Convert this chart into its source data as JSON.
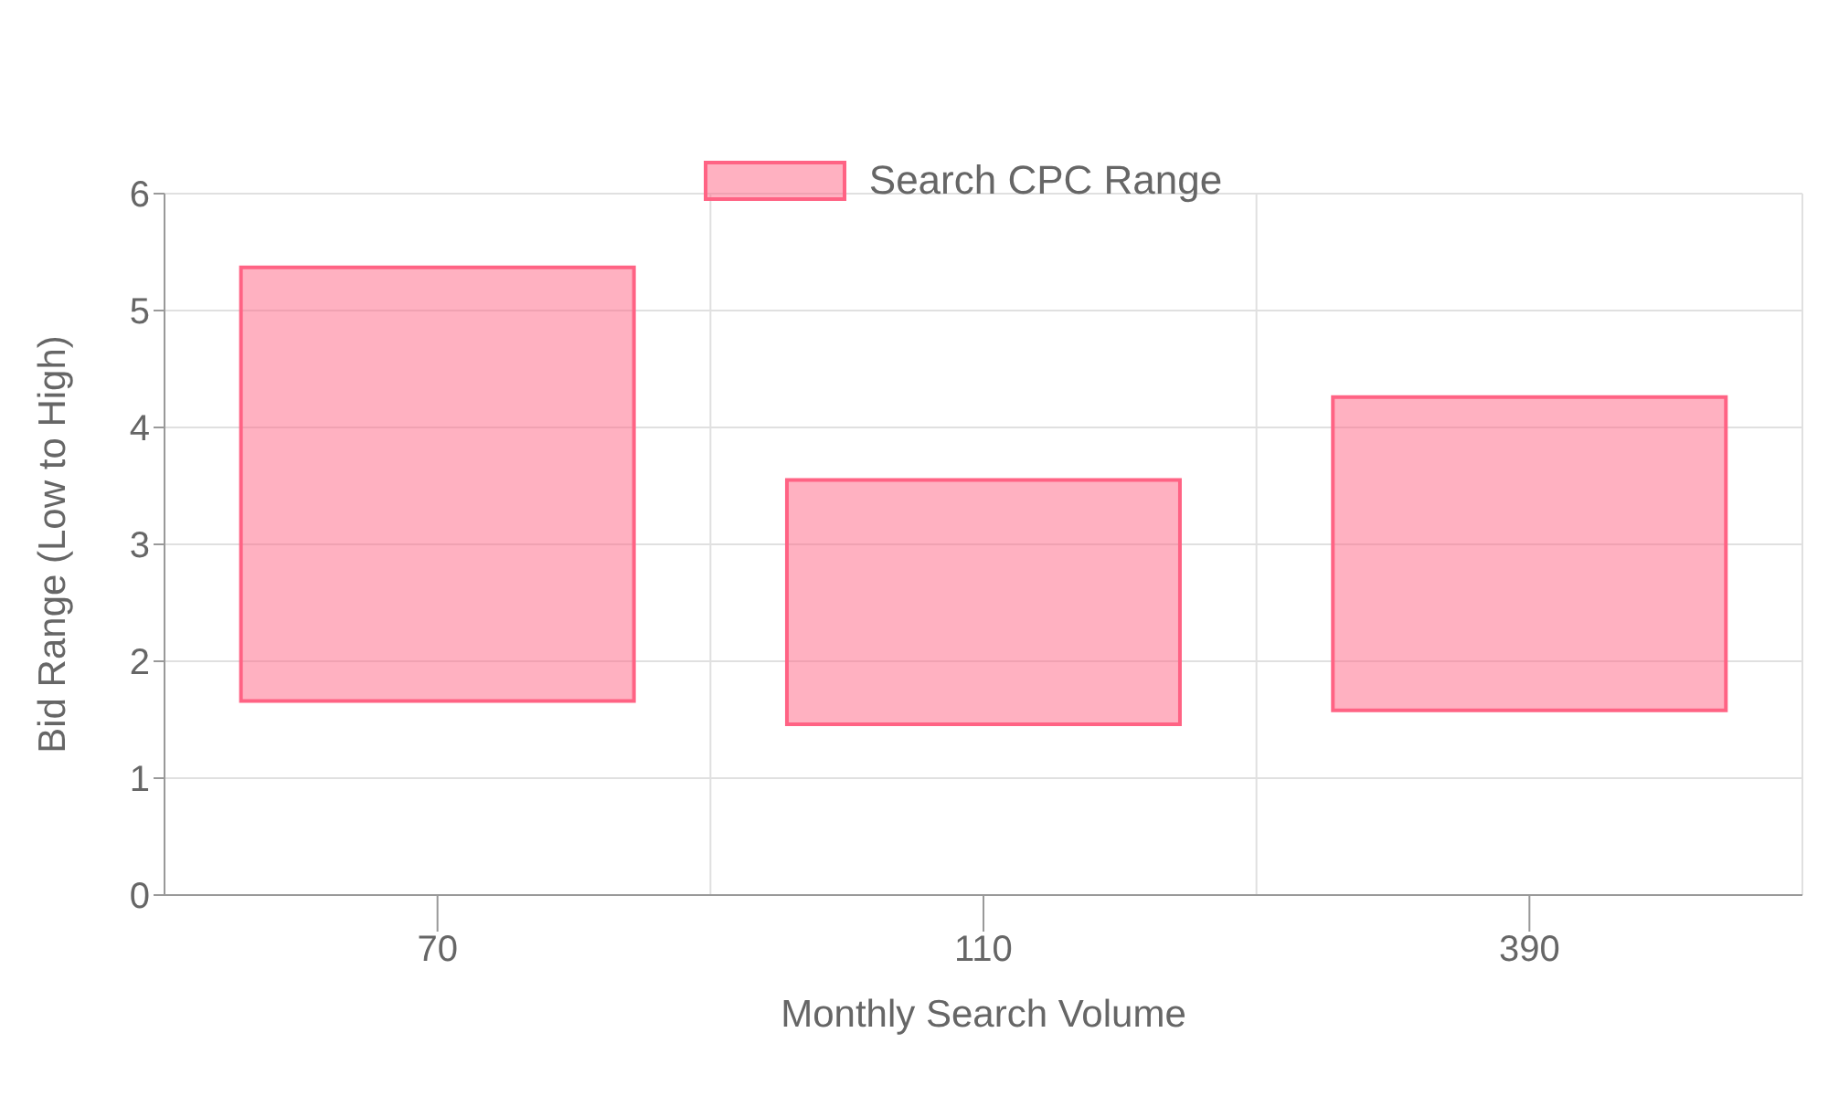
{
  "chart_data": {
    "type": "bar",
    "xlabel": "Monthly Search Volume",
    "ylabel": "Bid Range (Low to High)",
    "categories": [
      "70",
      "110",
      "390"
    ],
    "series": [
      {
        "name": "Search CPC Range",
        "color": "#ff6384",
        "base": [
          1.66,
          1.46,
          1.58
        ],
        "values": [
          3.71,
          2.09,
          2.68
        ]
      }
    ],
    "ylim": [
      0,
      6
    ],
    "yticks": [
      0,
      1,
      2,
      3,
      4,
      5,
      6
    ],
    "grid": true,
    "legend": "top"
  }
}
